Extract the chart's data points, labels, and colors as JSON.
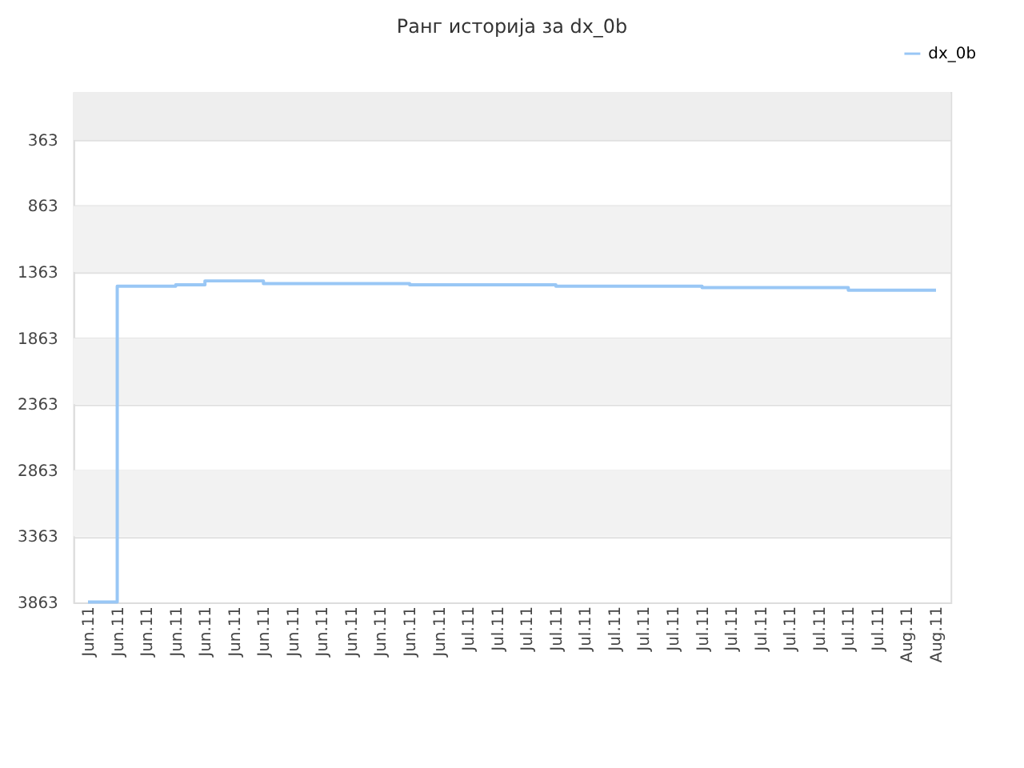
{
  "chart_data": {
    "type": "step",
    "title": "Ранг историја за dx_0b",
    "categories": [
      "Jun.11",
      "Jun.11",
      "Jun.11",
      "Jun.11",
      "Jun.11",
      "Jun.11",
      "Jun.11",
      "Jun.11",
      "Jun.11",
      "Jun.11",
      "Jun.11",
      "Jun.11",
      "Jun.11",
      "Jul.11",
      "Jul.11",
      "Jul.11",
      "Jul.11",
      "Jul.11",
      "Jul.11",
      "Jul.11",
      "Jul.11",
      "Jul.11",
      "Jul.11",
      "Jul.11",
      "Jul.11",
      "Jul.11",
      "Jul.11",
      "Jul.11",
      "Aug.11",
      "Aug.11"
    ],
    "series": [
      {
        "name": "dx_0b",
        "color": "#99c7f5",
        "values": [
          3860,
          1470,
          1470,
          1460,
          1430,
          1430,
          1450,
          1450,
          1450,
          1450,
          1450,
          1460,
          1460,
          1460,
          1460,
          1460,
          1470,
          1470,
          1470,
          1470,
          1470,
          1480,
          1480,
          1480,
          1480,
          1480,
          1500,
          1500,
          1500,
          1500
        ]
      }
    ],
    "ylim": [
      3863,
      0
    ],
    "yticks": [
      363,
      863,
      1363,
      1863,
      2363,
      2863,
      3363,
      3863
    ],
    "bands": [
      {
        "axis": "y",
        "from": 0,
        "to": 363,
        "color": "#eeeeee"
      },
      {
        "axis": "y",
        "from": 863,
        "to": 1363,
        "color": "#f2f2f2"
      },
      {
        "axis": "y",
        "from": 1863,
        "to": 2363,
        "color": "#f2f2f2"
      },
      {
        "axis": "y",
        "from": 2863,
        "to": 3363,
        "color": "#f2f2f2"
      }
    ],
    "grid": "y",
    "legend": "top right"
  }
}
